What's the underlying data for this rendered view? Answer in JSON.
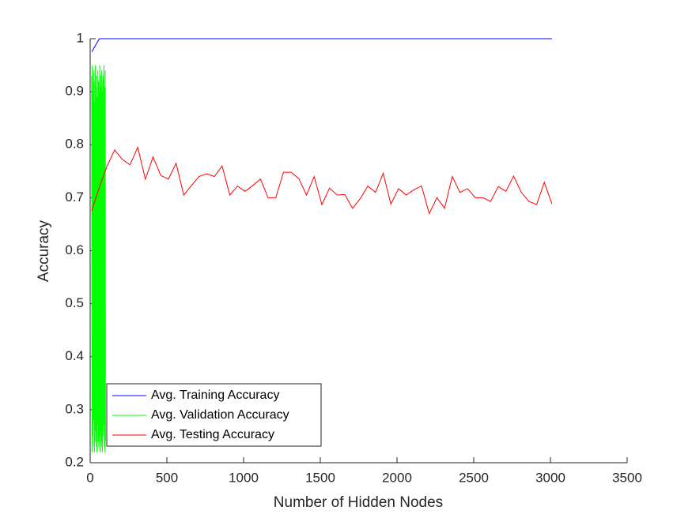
{
  "chart_data": {
    "type": "line",
    "xlabel": "Number of Hidden Nodes",
    "ylabel": "Accuracy",
    "xlim": [
      0,
      3500
    ],
    "xticks": [
      0,
      500,
      1000,
      1500,
      2000,
      2500,
      3000,
      3500
    ],
    "ylim": [
      0.2,
      1
    ],
    "yticks": [
      0.2,
      0.3,
      0.4,
      0.5,
      0.6,
      0.7,
      0.8,
      0.9,
      1
    ],
    "legend": "southwest",
    "series": [
      {
        "name": "Avg. Training Accuracy",
        "color": "#0000ff",
        "x": [
          10,
          60,
          110,
          160,
          210,
          260,
          310,
          360,
          410,
          460,
          510,
          560,
          610,
          660,
          710,
          760,
          810,
          860,
          910,
          960,
          1010,
          1060,
          1110,
          1160,
          1210,
          1260,
          1310,
          1360,
          1410,
          1460,
          1510,
          1560,
          1610,
          1660,
          1710,
          1760,
          1810,
          1860,
          1910,
          1960,
          2010,
          2060,
          2110,
          2160,
          2210,
          2260,
          2310,
          2360,
          2410,
          2460,
          2510,
          2560,
          2610,
          2660,
          2710,
          2760,
          2810,
          2860,
          2910,
          2960,
          3010
        ],
        "values": [
          0.975,
          1,
          1,
          1,
          1,
          1,
          1,
          1,
          1,
          1,
          1,
          1,
          1,
          1,
          1,
          1,
          1,
          1,
          1,
          1,
          1,
          1,
          1,
          1,
          1,
          1,
          1,
          1,
          1,
          1,
          1,
          1,
          1,
          1,
          1,
          1,
          1,
          1,
          1,
          1,
          1,
          1,
          1,
          1,
          1,
          1,
          1,
          1,
          1,
          1,
          1,
          1,
          1,
          1,
          1,
          1,
          1,
          1,
          1,
          1,
          1
        ]
      },
      {
        "name": "Avg. Validation Accuracy",
        "color": "#00ff00",
        "x": [
          10,
          12,
          14,
          16,
          18,
          20,
          22,
          24,
          26,
          28,
          30,
          32,
          34,
          36,
          38,
          40,
          42,
          44,
          46,
          48,
          50,
          52,
          54,
          56,
          58,
          60,
          62,
          64,
          66,
          68,
          70,
          72,
          74,
          76,
          78,
          80,
          82,
          84,
          86,
          88,
          90,
          92,
          94,
          96,
          98,
          100
        ],
        "values": [
          0.93,
          0.22,
          0.95,
          0.25,
          0.9,
          0.23,
          0.94,
          0.28,
          0.92,
          0.22,
          0.88,
          0.24,
          0.95,
          0.26,
          0.91,
          0.23,
          0.93,
          0.22,
          0.89,
          0.27,
          0.94,
          0.24,
          0.92,
          0.23,
          0.9,
          0.25,
          0.95,
          0.22,
          0.93,
          0.26,
          0.91,
          0.24,
          0.94,
          0.23,
          0.9,
          0.22,
          0.92,
          0.25,
          0.93,
          0.27,
          0.95,
          0.23,
          0.91,
          0.22,
          0.94,
          0.24
        ]
      },
      {
        "name": "Avg. Testing Accuracy",
        "color": "#ff0000",
        "x": [
          10,
          60,
          110,
          160,
          210,
          260,
          310,
          360,
          410,
          460,
          510,
          560,
          610,
          660,
          710,
          760,
          810,
          860,
          910,
          960,
          1010,
          1060,
          1110,
          1160,
          1210,
          1260,
          1310,
          1360,
          1410,
          1460,
          1510,
          1560,
          1610,
          1660,
          1710,
          1760,
          1810,
          1860,
          1910,
          1960,
          2010,
          2060,
          2110,
          2160,
          2210,
          2260,
          2310,
          2360,
          2410,
          2460,
          2510,
          2560,
          2610,
          2660,
          2710,
          2760,
          2810,
          2860,
          2910,
          2960,
          3010
        ],
        "values": [
          0.675,
          0.72,
          0.76,
          0.79,
          0.772,
          0.762,
          0.795,
          0.735,
          0.777,
          0.742,
          0.735,
          0.765,
          0.705,
          0.723,
          0.74,
          0.745,
          0.74,
          0.76,
          0.705,
          0.722,
          0.712,
          0.723,
          0.735,
          0.7,
          0.7,
          0.748,
          0.748,
          0.736,
          0.705,
          0.74,
          0.687,
          0.718,
          0.705,
          0.706,
          0.68,
          0.698,
          0.722,
          0.71,
          0.746,
          0.688,
          0.717,
          0.705,
          0.715,
          0.722,
          0.67,
          0.7,
          0.68,
          0.74,
          0.71,
          0.717,
          0.7,
          0.7,
          0.693,
          0.721,
          0.712,
          0.741,
          0.71,
          0.693,
          0.687,
          0.729,
          0.688
        ]
      }
    ]
  }
}
